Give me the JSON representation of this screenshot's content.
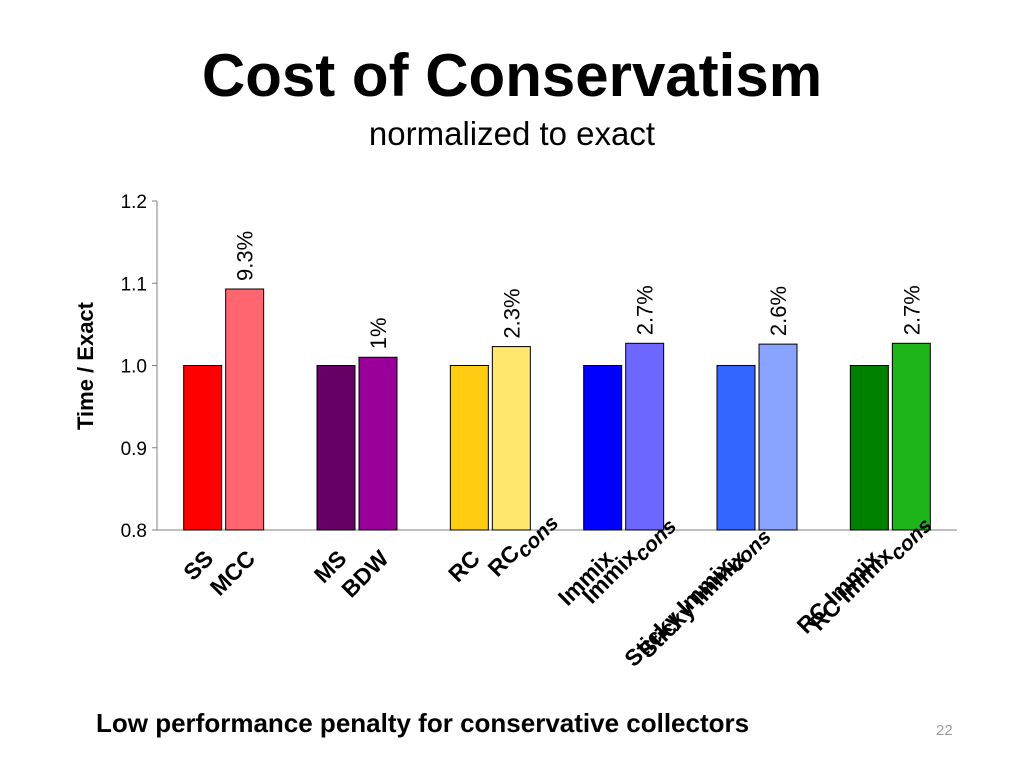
{
  "slide": {
    "title": "Cost of Conservatism",
    "subtitle": "normalized to exact",
    "footer": "Low performance penalty for conservative collectors",
    "page_number": "22"
  },
  "chart_data": {
    "type": "bar",
    "ylabel": "Time / Exact",
    "ylim": [
      0.8,
      1.2
    ],
    "yticks": [
      "0.8",
      "0.9",
      "1.0",
      "1.1",
      "1.2"
    ],
    "grid": false,
    "groups": [
      {
        "bars": [
          {
            "label": "SS",
            "sub": "",
            "value": 1.0,
            "color": "#ff0000",
            "annotation": ""
          },
          {
            "label": "MCC",
            "sub": "",
            "value": 1.093,
            "color": "#ff6670",
            "annotation": "9.3%"
          }
        ]
      },
      {
        "bars": [
          {
            "label": "MS",
            "sub": "",
            "value": 1.0,
            "color": "#660066",
            "annotation": ""
          },
          {
            "label": "BDW",
            "sub": "",
            "value": 1.01,
            "color": "#990099",
            "annotation": "1%"
          }
        ]
      },
      {
        "bars": [
          {
            "label": "RC",
            "sub": "",
            "value": 1.0,
            "color": "#ffcc11",
            "annotation": ""
          },
          {
            "label": "RC",
            "sub": "cons",
            "value": 1.023,
            "color": "#ffe66f",
            "annotation": "2.3%"
          }
        ]
      },
      {
        "bars": [
          {
            "label": "Immix",
            "sub": "",
            "value": 1.0,
            "color": "#0000ff",
            "annotation": ""
          },
          {
            "label": "Immix",
            "sub": "cons",
            "value": 1.027,
            "color": "#6d66ff",
            "annotation": "2.7%"
          }
        ]
      },
      {
        "bars": [
          {
            "label": "Sticky Immix",
            "sub": "",
            "value": 1.0,
            "color": "#3366ff",
            "annotation": ""
          },
          {
            "label": "Sticky Immix",
            "sub": "cons",
            "value": 1.026,
            "color": "#8aa3ff",
            "annotation": "2.6%"
          }
        ]
      },
      {
        "bars": [
          {
            "label": "RC Immix",
            "sub": "",
            "value": 1.0,
            "color": "#008000",
            "annotation": ""
          },
          {
            "label": "RC Immix",
            "sub": "cons",
            "value": 1.027,
            "color": "#1db51a",
            "annotation": "2.7%"
          }
        ]
      }
    ]
  }
}
